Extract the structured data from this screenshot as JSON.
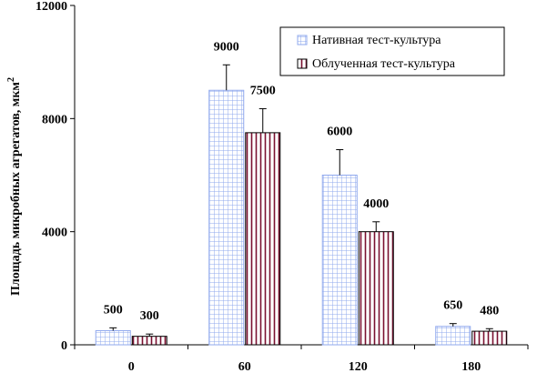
{
  "chart_data": {
    "type": "bar",
    "categories": [
      "0",
      "60",
      "120",
      "180"
    ],
    "series": [
      {
        "name": "Нативная тест-культура",
        "values": [
          500,
          9000,
          6000,
          650
        ],
        "errors": [
          100,
          900,
          900,
          100
        ],
        "color": "#9db4f0",
        "pattern": "grid"
      },
      {
        "name": "Облученная тест-культура",
        "values": [
          300,
          7500,
          4000,
          480
        ],
        "errors": [
          80,
          850,
          350,
          90
        ],
        "color": "#7a1030",
        "pattern": "vertical-lines"
      }
    ],
    "data_labels": [
      [
        "500",
        "9000",
        "6000",
        "650"
      ],
      [
        "300",
        "7500",
        "4000",
        "480"
      ]
    ],
    "ylabel": "Площадь микробных агрегатов, мкм",
    "ylabel_superscript": "2",
    "ylim": [
      0,
      12000
    ],
    "yticks": [
      "0",
      "4000",
      "8000",
      "12000"
    ],
    "grid": false,
    "legend_position": "top-right",
    "error_bars": true
  }
}
